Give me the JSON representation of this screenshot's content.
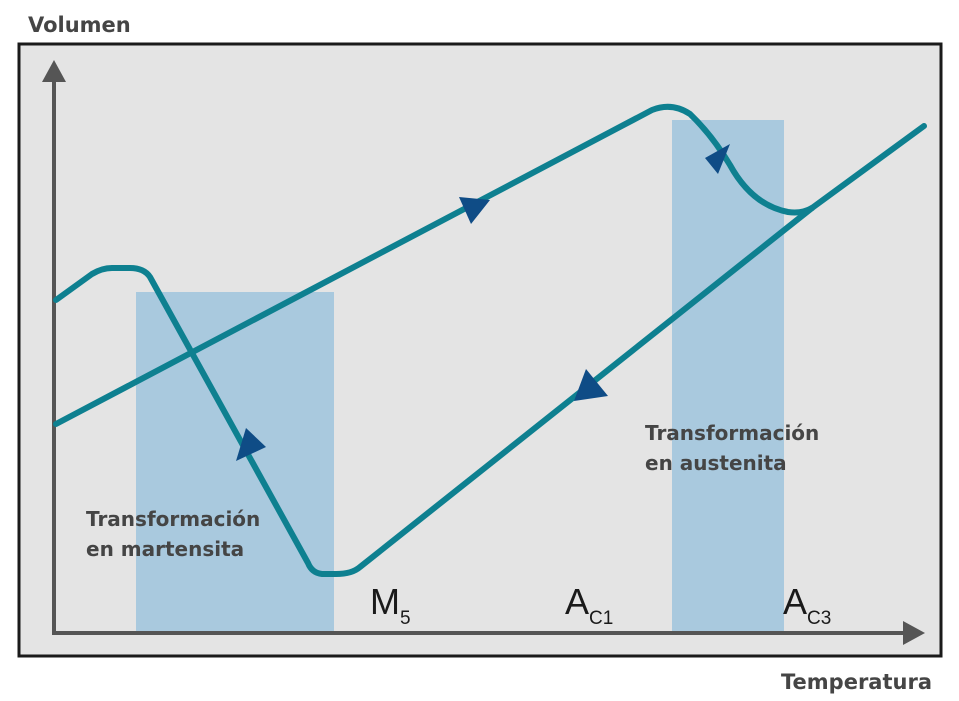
{
  "axes": {
    "y_label": "Volumen",
    "x_label": "Temperatura"
  },
  "regions": {
    "martensite_label_line1": "Transformación",
    "martensite_label_line2": "en martensita",
    "austenite_label_line1": "Transformación",
    "austenite_label_line2": "en austenita"
  },
  "points": {
    "ms_main": "M",
    "ms_sub": "5",
    "ac1_main": "A",
    "ac1_sub": "C1",
    "ac3_main": "A",
    "ac3_sub": "C3"
  },
  "colors": {
    "curve": "#0e8090",
    "arrow": "#0f4c86",
    "shade": "#a9c9de",
    "panel": "#e4e4e4",
    "axis": "#555555",
    "label": "#454545"
  }
}
